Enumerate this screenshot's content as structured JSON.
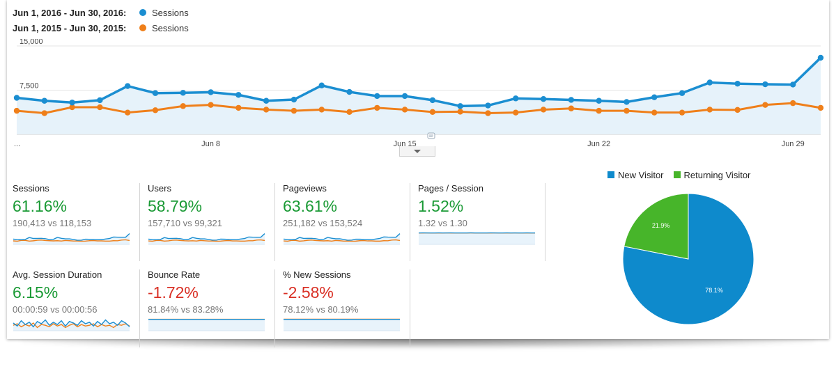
{
  "legend": {
    "current_range": "Jun 1, 2016 - Jun 30, 2016:",
    "previous_range": "Jun 1, 2015 - Jun 30, 2015:",
    "series_label": "Sessions"
  },
  "colors": {
    "current": "#1b8ed1",
    "previous": "#ef7f1a",
    "positive": "#1a9a35",
    "negative": "#d93025",
    "returning": "#47b52a"
  },
  "chart_data": [
    {
      "type": "line",
      "x": [
        "Jun 1",
        "Jun 2",
        "Jun 3",
        "Jun 4",
        "Jun 5",
        "Jun 6",
        "Jun 7",
        "Jun 8",
        "Jun 9",
        "Jun 10",
        "Jun 11",
        "Jun 12",
        "Jun 13",
        "Jun 14",
        "Jun 15",
        "Jun 16",
        "Jun 17",
        "Jun 18",
        "Jun 19",
        "Jun 20",
        "Jun 21",
        "Jun 22",
        "Jun 23",
        "Jun 24",
        "Jun 25",
        "Jun 26",
        "Jun 27",
        "Jun 28",
        "Jun 29",
        "Jun 30"
      ],
      "x_tick_labels": [
        "...",
        "Jun 8",
        "Jun 15",
        "Jun 22",
        "Jun 29"
      ],
      "y_tick_labels": [
        "15,000",
        "7,500"
      ],
      "ylim": [
        0,
        15000
      ],
      "series": [
        {
          "name": "Sessions",
          "period": "Jun 1, 2016 - Jun 30, 2016",
          "values": [
            6200,
            5700,
            5400,
            5800,
            8200,
            7000,
            7050,
            7150,
            6700,
            5700,
            5900,
            8300,
            7200,
            6500,
            6500,
            5800,
            4800,
            4900,
            6100,
            6000,
            5850,
            5700,
            5500,
            6300,
            7000,
            8800,
            8600,
            8500,
            8450,
            13000
          ]
        },
        {
          "name": "Sessions",
          "period": "Jun 1, 2015 - Jun 30, 2015",
          "values": [
            4000,
            3600,
            4600,
            4600,
            3700,
            4100,
            4800,
            5000,
            4500,
            4200,
            4000,
            4200,
            3800,
            4500,
            4200,
            3800,
            3850,
            3600,
            3700,
            4200,
            4400,
            4000,
            4000,
            3700,
            3700,
            4200,
            4150,
            5000,
            5300,
            4500
          ]
        }
      ]
    },
    {
      "type": "pie",
      "legend": [
        "New Visitor",
        "Returning Visitor"
      ],
      "values": [
        78.1,
        21.9
      ],
      "labels": [
        "78.1%",
        "21.9%"
      ],
      "colors": [
        "#0e8acc",
        "#47b52a"
      ]
    }
  ],
  "metrics": [
    {
      "title": "Sessions",
      "change": "61.16%",
      "direction": "positive",
      "compare": "190,413 vs 118,153",
      "spark_current": [
        6200,
        5700,
        5400,
        5800,
        8200,
        7000,
        7050,
        7150,
        6700,
        5700,
        5900,
        8300,
        7200,
        6500,
        6500,
        5800,
        4800,
        4900,
        6100,
        6000,
        5850,
        5700,
        5500,
        6300,
        7000,
        8800,
        8600,
        8500,
        8450,
        13000
      ],
      "spark_previous": [
        4000,
        3600,
        4600,
        4600,
        3700,
        4100,
        4800,
        5000,
        4500,
        4200,
        4000,
        4200,
        3800,
        4500,
        4200,
        3800,
        3850,
        3600,
        3700,
        4200,
        4400,
        4000,
        4000,
        3700,
        3700,
        4200,
        4150,
        5000,
        5300,
        4500
      ]
    },
    {
      "title": "Users",
      "change": "58.79%",
      "direction": "positive",
      "compare": "157,710 vs 99,321",
      "spark_current": [
        5300,
        4900,
        4700,
        5000,
        7000,
        6000,
        6050,
        6150,
        5800,
        4900,
        5100,
        7100,
        6200,
        5600,
        5600,
        5000,
        4200,
        4300,
        5300,
        5200,
        5050,
        4900,
        4800,
        5400,
        6000,
        7600,
        7400,
        7300,
        7300,
        11200
      ],
      "spark_previous": [
        3400,
        3100,
        3900,
        3900,
        3200,
        3500,
        4100,
        4300,
        3900,
        3600,
        3400,
        3600,
        3300,
        3900,
        3600,
        3300,
        3300,
        3100,
        3200,
        3600,
        3800,
        3400,
        3400,
        3200,
        3200,
        3600,
        3600,
        4300,
        4500,
        3900
      ]
    },
    {
      "title": "Pageviews",
      "change": "63.61%",
      "direction": "positive",
      "compare": "251,182 vs 153,524",
      "spark_current": [
        8100,
        7500,
        7100,
        7600,
        10800,
        9200,
        9300,
        9400,
        8800,
        7500,
        7800,
        10900,
        9500,
        8600,
        8600,
        7600,
        6300,
        6500,
        8000,
        7900,
        7700,
        7500,
        7300,
        8300,
        9200,
        11600,
        11300,
        11200,
        11100,
        17000
      ],
      "spark_previous": [
        5200,
        4700,
        6000,
        6000,
        4800,
        5300,
        6200,
        6500,
        5800,
        5500,
        5200,
        5500,
        4900,
        5800,
        5500,
        4900,
        5000,
        4700,
        4800,
        5500,
        5700,
        5200,
        5200,
        4800,
        4800,
        5500,
        5400,
        6500,
        6900,
        5800
      ]
    },
    {
      "title": "Pages / Session",
      "change": "1.52%",
      "direction": "positive",
      "compare": "1.32 vs 1.30",
      "spark_current": [
        1.32,
        1.33,
        1.32,
        1.31,
        1.32,
        1.33,
        1.32,
        1.32,
        1.33,
        1.32,
        1.31,
        1.32,
        1.32,
        1.33,
        1.32,
        1.32,
        1.31,
        1.32,
        1.33,
        1.32,
        1.32,
        1.32,
        1.33,
        1.32,
        1.31,
        1.32,
        1.32,
        1.33,
        1.32,
        1.32
      ],
      "spark_previous": [
        1.3,
        1.3,
        1.31,
        1.3,
        1.29,
        1.3,
        1.3,
        1.31,
        1.3,
        1.3,
        1.29,
        1.3,
        1.3,
        1.31,
        1.3,
        1.3,
        1.3,
        1.29,
        1.3,
        1.31,
        1.3,
        1.3,
        1.3,
        1.3,
        1.31,
        1.3,
        1.3,
        1.29,
        1.3,
        1.3
      ]
    },
    {
      "title": "Avg. Session Duration",
      "change": "6.15%",
      "direction": "positive",
      "compare": "00:00:59 vs 00:00:56",
      "spark_current": [
        59,
        55,
        62,
        57,
        60,
        54,
        61,
        58,
        63,
        56,
        60,
        57,
        62,
        55,
        61,
        59,
        56,
        62,
        58,
        60,
        55,
        61,
        57,
        63,
        58,
        60,
        56,
        62,
        59,
        54
      ],
      "spark_previous": [
        56,
        58,
        54,
        57,
        55,
        59,
        53,
        57,
        56,
        54,
        58,
        55,
        57,
        53,
        56,
        58,
        54,
        57,
        55,
        56,
        58,
        54,
        57,
        55,
        56,
        53,
        57,
        56,
        58,
        55
      ]
    },
    {
      "title": "Bounce Rate",
      "change": "-1.72%",
      "direction": "negative",
      "compare": "81.84% vs 83.28%",
      "spark_current": [
        81.8,
        81.9,
        81.8,
        81.7,
        81.9,
        81.8,
        81.8,
        81.9,
        81.8,
        81.7,
        81.8,
        81.9,
        81.8,
        81.8,
        81.9,
        81.8,
        81.7,
        81.8,
        81.9,
        81.8,
        81.8,
        81.8,
        81.9,
        81.8,
        81.7,
        81.8,
        81.9,
        81.8,
        81.8,
        81.9
      ],
      "spark_previous": [
        83.3,
        83.2,
        83.3,
        83.3,
        83.2,
        83.3,
        83.3,
        83.2,
        83.3,
        83.3,
        83.3,
        83.2,
        83.3,
        83.3,
        83.2,
        83.3,
        83.3,
        83.3,
        83.2,
        83.3,
        83.3,
        83.2,
        83.3,
        83.3,
        83.3,
        83.2,
        83.3,
        83.3,
        83.2,
        83.3
      ]
    },
    {
      "title": "% New Sessions",
      "change": "-2.58%",
      "direction": "negative",
      "compare": "78.12% vs 80.19%",
      "spark_current": [
        78.1,
        78.2,
        78.0,
        78.1,
        78.2,
        78.1,
        78.0,
        78.1,
        78.2,
        78.1,
        78.1,
        78.0,
        78.2,
        78.1,
        78.1,
        78.2,
        78.0,
        78.1,
        78.1,
        78.2,
        78.1,
        78.0,
        78.1,
        78.2,
        78.1,
        78.1,
        78.0,
        78.1,
        78.2,
        78.1
      ],
      "spark_previous": [
        80.2,
        80.1,
        80.2,
        80.2,
        80.3,
        80.2,
        80.1,
        80.2,
        80.2,
        80.2,
        80.3,
        80.2,
        80.1,
        80.2,
        80.2,
        80.2,
        80.1,
        80.2,
        80.3,
        80.2,
        80.2,
        80.1,
        80.2,
        80.2,
        80.2,
        80.3,
        80.2,
        80.1,
        80.2,
        80.2
      ]
    }
  ]
}
